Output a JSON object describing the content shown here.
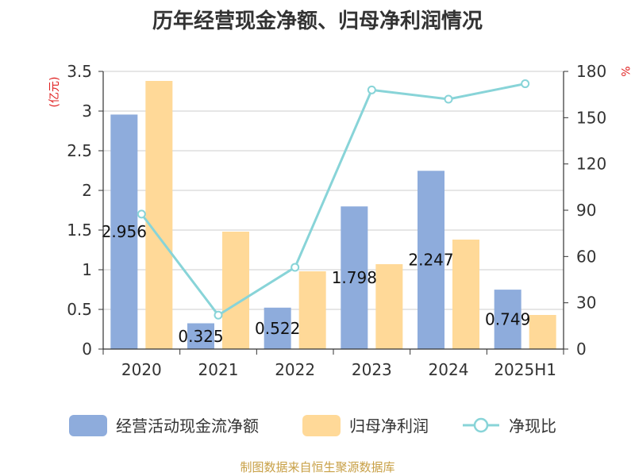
{
  "title": "历年经营现金净额、归母净利润情况",
  "source": "制图数据来自恒生聚源数据库",
  "colors": {
    "bar1": "#8eacdc",
    "bar2": "#ffd998",
    "line": "#88d4d8",
    "axis": "#333333",
    "grid": "#cccccc",
    "unit": "#e02020"
  },
  "chart_data": {
    "type": "bar",
    "categories": [
      "2020",
      "2021",
      "2022",
      "2023",
      "2024",
      "2025H1"
    ],
    "y_left": {
      "label": "(亿元)",
      "min": 0,
      "max": 3.5,
      "ticks": [
        "0",
        "0.5",
        "1",
        "1.5",
        "2",
        "2.5",
        "3",
        "3.5"
      ]
    },
    "y_right": {
      "label": "%",
      "min": 0,
      "max": 180,
      "ticks": [
        "0",
        "30",
        "60",
        "90",
        "120",
        "150",
        "180"
      ]
    },
    "grid": true,
    "legend_position": "bottom",
    "series": [
      {
        "name": "经营活动现金流净额",
        "type": "bar",
        "axis": "left",
        "values": [
          2.956,
          0.325,
          0.522,
          1.798,
          2.247,
          0.749
        ],
        "labels": [
          "2.956",
          "0.325",
          "0.522",
          "1.798",
          "2.247",
          "0.749"
        ]
      },
      {
        "name": "归母净利润",
        "type": "bar",
        "axis": "left",
        "values": [
          3.38,
          1.48,
          0.98,
          1.07,
          1.38,
          0.43
        ]
      },
      {
        "name": "净现比",
        "type": "line",
        "axis": "right",
        "values": [
          87.5,
          22,
          53,
          168,
          162,
          172
        ]
      }
    ]
  }
}
